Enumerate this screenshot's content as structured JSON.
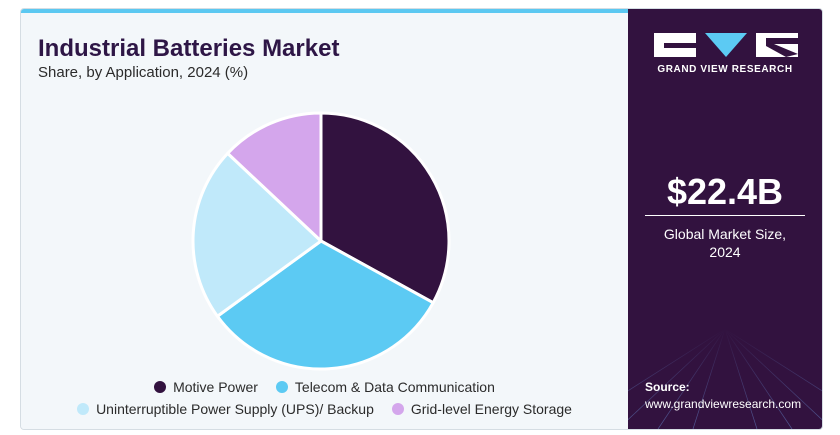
{
  "header": {
    "title": "Industrial Batteries Market",
    "subtitle": "Share, by Application, 2024 (%)"
  },
  "chart_data": {
    "type": "pie",
    "title": "Industrial Batteries Market",
    "subtitle": "Share, by Application, 2024 (%)",
    "categories": [
      "Motive Power",
      "Telecom & Data Communication",
      "Uninterruptible Power Supply (UPS)/ Backup",
      "Grid-level Energy Storage"
    ],
    "values": [
      33,
      32,
      22,
      13
    ],
    "colors": [
      "#32123f",
      "#5ccaf3",
      "#c0e9fa",
      "#d4a6ec"
    ],
    "legend_position": "bottom"
  },
  "side_panel": {
    "logo_text": "GRAND VIEW RESEARCH",
    "market_size": "$22.4B",
    "caption_line1": "Global Market Size,",
    "caption_line2": "2024",
    "source_label": "Source:",
    "source_url": "www.grandviewresearch.com"
  }
}
